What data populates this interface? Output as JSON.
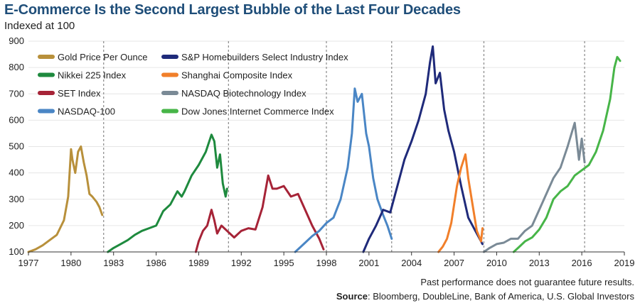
{
  "header": {
    "title": "E-Commerce Is the Second Largest Bubble of the Last Four Decades",
    "subtitle": "Indexed at 100"
  },
  "footer": {
    "note": "Past performance does not guarantee future results.",
    "source_label": "Source",
    "source_text": ": Bloomberg, DoubleLine, Bank of America, U.S. Global Investors"
  },
  "chart_data": {
    "type": "line",
    "title": "E-Commerce Is the Second Largest Bubble of the Last Four Decades",
    "subtitle": "Indexed at 100",
    "xlabel": "",
    "ylabel": "",
    "xlim": [
      1977,
      2019
    ],
    "ylim": [
      100,
      900
    ],
    "x_ticks": [
      "1977",
      "1980",
      "1983",
      "1986",
      "1989",
      "1992",
      "1995",
      "1998",
      "2001",
      "2004",
      "2007",
      "2010",
      "2013",
      "2016",
      "2019"
    ],
    "y_ticks": [
      "100",
      "200",
      "300",
      "400",
      "500",
      "600",
      "700",
      "800",
      "900"
    ],
    "dashed_verticals": [
      1982.3,
      1991.1,
      1998.0,
      2002.6,
      2009.1,
      2016.2
    ],
    "legend_position": "top-left",
    "series": [
      {
        "name": "Gold Price Per Ounce",
        "color": "#b8903b",
        "x": [
          1977.0,
          1977.5,
          1978.0,
          1978.5,
          1979.0,
          1979.5,
          1979.8,
          1980.0,
          1980.1,
          1980.3,
          1980.5,
          1980.7,
          1980.9,
          1981.1,
          1981.3,
          1981.5,
          1981.8,
          1982.0,
          1982.2
        ],
        "y": [
          100,
          110,
          125,
          145,
          165,
          220,
          310,
          490,
          450,
          400,
          480,
          500,
          440,
          390,
          320,
          310,
          290,
          270,
          240
        ]
      },
      {
        "name": "Nikkei 225 Index",
        "color": "#1e8a3e",
        "x": [
          1982.6,
          1983.0,
          1983.5,
          1984.0,
          1984.5,
          1985.0,
          1985.5,
          1986.0,
          1986.5,
          1987.0,
          1987.5,
          1987.8,
          1988.0,
          1988.5,
          1989.0,
          1989.5,
          1989.9,
          1990.1,
          1990.3,
          1990.5,
          1990.7,
          1990.9,
          1991.0
        ],
        "y": [
          100,
          115,
          130,
          145,
          165,
          180,
          190,
          200,
          255,
          280,
          330,
          310,
          330,
          390,
          430,
          480,
          545,
          520,
          420,
          470,
          360,
          310,
          340
        ]
      },
      {
        "name": "SET Index",
        "color": "#a62337",
        "x": [
          1988.8,
          1989.0,
          1989.3,
          1989.6,
          1989.9,
          1990.1,
          1990.3,
          1990.6,
          1991.0,
          1991.5,
          1992.0,
          1992.5,
          1993.0,
          1993.5,
          1993.9,
          1994.2,
          1994.5,
          1995.0,
          1995.5,
          1996.0,
          1996.5,
          1997.0,
          1997.5,
          1997.8
        ],
        "y": [
          100,
          140,
          180,
          200,
          260,
          220,
          170,
          200,
          180,
          155,
          180,
          190,
          185,
          270,
          390,
          340,
          340,
          350,
          310,
          320,
          260,
          200,
          150,
          110
        ]
      },
      {
        "name": "NASDAQ-100",
        "color": "#4a86c5",
        "x": [
          1995.8,
          1996.2,
          1996.6,
          1997.0,
          1997.5,
          1998.0,
          1998.5,
          1999.0,
          1999.5,
          1999.8,
          2000.0,
          2000.2,
          2000.5,
          2000.8,
          2001.0,
          2001.3,
          2001.6,
          2002.0,
          2002.3,
          2002.6
        ],
        "y": [
          100,
          120,
          140,
          160,
          180,
          210,
          230,
          300,
          420,
          550,
          720,
          670,
          700,
          550,
          500,
          380,
          300,
          240,
          200,
          150
        ]
      },
      {
        "name": "S&P Homebuilders Select Industry Index",
        "color": "#1f2a7a",
        "x": [
          2000.6,
          2001.0,
          2001.5,
          2002.0,
          2002.5,
          2003.0,
          2003.5,
          2004.0,
          2004.5,
          2005.0,
          2005.3,
          2005.5,
          2005.7,
          2006.0,
          2006.3,
          2006.6,
          2007.0,
          2007.5,
          2008.0,
          2008.5,
          2009.0
        ],
        "y": [
          100,
          150,
          200,
          260,
          250,
          350,
          450,
          520,
          600,
          700,
          820,
          880,
          740,
          780,
          640,
          560,
          480,
          350,
          230,
          180,
          130
        ]
      },
      {
        "name": "Shanghai Composite Index",
        "color": "#f17f2a",
        "x": [
          2005.9,
          2006.2,
          2006.5,
          2006.8,
          2007.0,
          2007.2,
          2007.5,
          2007.8,
          2008.0,
          2008.3,
          2008.6,
          2008.9,
          2009.0
        ],
        "y": [
          100,
          120,
          150,
          210,
          280,
          350,
          420,
          470,
          380,
          280,
          180,
          140,
          190
        ]
      },
      {
        "name": "NASDAQ Biotechnology Index",
        "color": "#7a8a96",
        "x": [
          2009.1,
          2009.5,
          2010.0,
          2010.5,
          2011.0,
          2011.5,
          2012.0,
          2012.5,
          2013.0,
          2013.5,
          2014.0,
          2014.5,
          2015.0,
          2015.5,
          2015.8,
          2016.0,
          2016.2
        ],
        "y": [
          100,
          115,
          130,
          135,
          150,
          150,
          180,
          200,
          260,
          320,
          380,
          420,
          500,
          590,
          450,
          530,
          440
        ]
      },
      {
        "name": "Dow Jones Internet Commerce Index",
        "color": "#47b548",
        "x": [
          2011.2,
          2011.6,
          2012.0,
          2012.5,
          2013.0,
          2013.5,
          2014.0,
          2014.5,
          2015.0,
          2015.5,
          2016.0,
          2016.5,
          2017.0,
          2017.5,
          2018.0,
          2018.3,
          2018.5,
          2018.7
        ],
        "y": [
          100,
          120,
          140,
          155,
          185,
          230,
          300,
          330,
          350,
          390,
          410,
          430,
          480,
          560,
          680,
          800,
          840,
          825
        ]
      }
    ]
  }
}
